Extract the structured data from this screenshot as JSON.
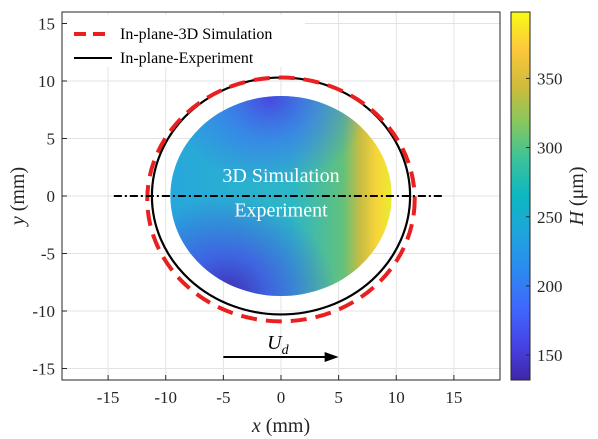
{
  "chart_data": {
    "type": "heatmap",
    "xlabel": {
      "var": "x",
      "unit": "(mm)"
    },
    "ylabel": {
      "var": "y",
      "unit": "(mm)"
    },
    "xlim": [
      -19,
      19
    ],
    "ylim": [
      -16,
      16
    ],
    "xticks": [
      "-15",
      "-10",
      "-5",
      "0",
      "5",
      "10",
      "15"
    ],
    "yticks": [
      "-15",
      "-10",
      "-5",
      "0",
      "5",
      "10",
      "15"
    ],
    "xtick_values": [
      -15,
      -10,
      -5,
      0,
      5,
      10,
      15
    ],
    "ytick_values": [
      -15,
      -10,
      -5,
      0,
      5,
      10,
      15
    ],
    "grid": true,
    "legend_position": "top-left",
    "colorbar": {
      "label_var": "H",
      "label_unit": "(μm)",
      "range": [
        132,
        398
      ],
      "ticks": [
        "150",
        "200",
        "250",
        "300",
        "350"
      ],
      "tick_values": [
        150,
        200,
        250,
        300,
        350
      ],
      "colormap": "parula"
    },
    "series": [
      {
        "name": "In-plane-3D Simulation",
        "style": "dashed",
        "color": "#e8201f",
        "shape": "ellipse",
        "center": [
          0,
          -0.3
        ],
        "rx": 11.6,
        "ry": 10.6
      },
      {
        "name": "In-plane-Experiment",
        "style": "solid",
        "color": "#000000",
        "shape": "ellipse",
        "center": [
          0,
          0
        ],
        "rx": 11.2,
        "ry": 10.3
      }
    ],
    "field": {
      "name": "H field",
      "center": [
        0,
        0
      ],
      "rx": 9.6,
      "ry": 8.7,
      "typical_value": 262,
      "front_value": 380,
      "back_corner_value": 145
    },
    "centerline": {
      "style": "dash-dot",
      "x": [
        -14.5,
        14
      ],
      "y": 0
    },
    "annotations": {
      "line1": "3D Simulation",
      "line2": "Experiment",
      "velocity_label": "U",
      "velocity_sub": "d",
      "arrow_from": [
        -5,
        -14
      ],
      "arrow_to": [
        5,
        -14
      ]
    },
    "colors": {
      "red_dashed": "#e8201f",
      "black": "#000000",
      "grid": "#e0e0e0"
    }
  }
}
